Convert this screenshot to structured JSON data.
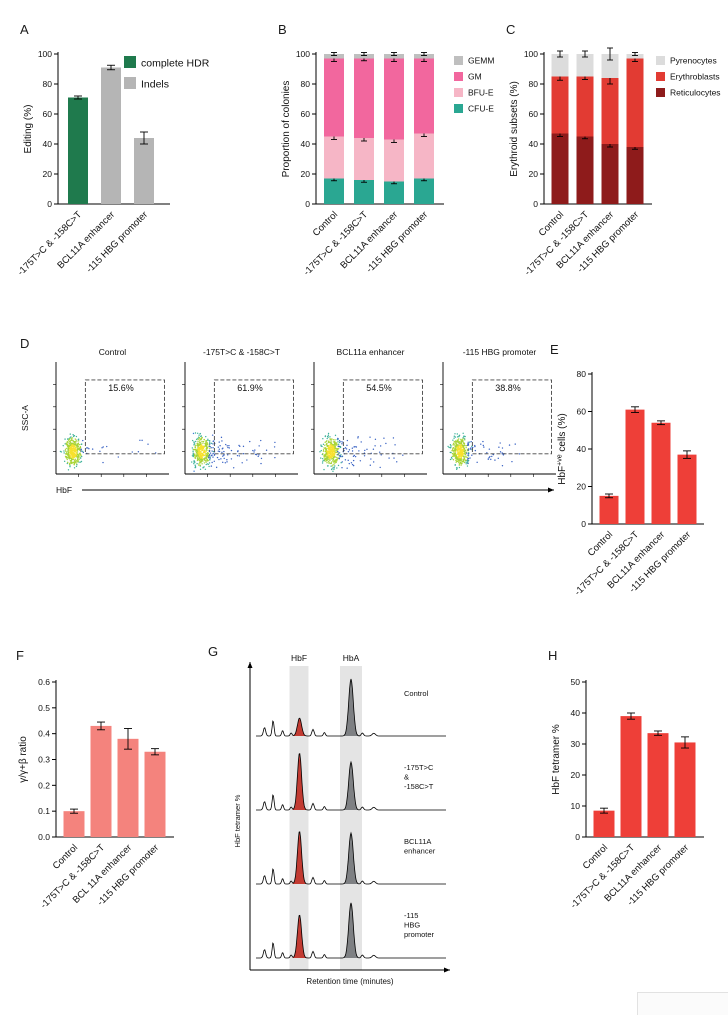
{
  "figure": {
    "background": "#ffffff",
    "panel_labels": {
      "A": "A",
      "B": "B",
      "C": "C",
      "D": "D",
      "E": "E",
      "F": "F",
      "G": "G",
      "H": "H"
    }
  },
  "chart_data": [
    {
      "panel": "A",
      "type": "bar",
      "ylabel": "Editing (%)",
      "ylim": [
        0,
        100
      ],
      "yticks": [
        0,
        20,
        40,
        60,
        80,
        100
      ],
      "ytick_labels": [
        "0",
        "20",
        "40",
        "60",
        "80",
        "100"
      ],
      "categories": [
        "-175T>C & -158C>T",
        "BCL11A enhancer",
        "-115 HBG promoter"
      ],
      "values": [
        71,
        91,
        44
      ],
      "errors": [
        1,
        1.5,
        4
      ],
      "bar_colors": [
        "#1f7a4d",
        "#b5b5b5",
        "#b5b5b5"
      ],
      "legend": [
        {
          "label": "complete HDR",
          "color": "#1f7a4d"
        },
        {
          "label": "Indels",
          "color": "#b5b5b5"
        }
      ]
    },
    {
      "panel": "B",
      "type": "stacked-bar",
      "ylabel": "Proportion of colonies",
      "ylim": [
        0,
        100
      ],
      "yticks": [
        0,
        20,
        40,
        60,
        80,
        100
      ],
      "ytick_labels": [
        "0",
        "20",
        "40",
        "60",
        "80",
        "100"
      ],
      "categories": [
        "Control",
        "-175T>C & -158C>T",
        "BCL11A enhancer",
        "-115 HBG promoter"
      ],
      "series": [
        {
          "name": "CFU-E",
          "color": "#2aa792",
          "values": [
            17,
            16,
            15,
            17
          ],
          "errors": [
            1.5,
            1.5,
            1.5,
            1.5
          ]
        },
        {
          "name": "BFU-E",
          "color": "#f6b6c6",
          "values": [
            28,
            28,
            28,
            30
          ],
          "errors": [
            2,
            2,
            2,
            2
          ]
        },
        {
          "name": "GM",
          "color": "#f2679e",
          "values": [
            52,
            53,
            54,
            50
          ],
          "errors": [
            2,
            1.5,
            2,
            2
          ]
        },
        {
          "name": "GEMM",
          "color": "#bfbfbf",
          "values": [
            3,
            3,
            3,
            3
          ],
          "errors": [
            1,
            1,
            1,
            1
          ]
        }
      ],
      "legend": [
        {
          "label": "GEMM",
          "color": "#bfbfbf"
        },
        {
          "label": "GM",
          "color": "#f2679e"
        },
        {
          "label": "BFU-E",
          "color": "#f6b6c6"
        },
        {
          "label": "CFU-E",
          "color": "#2aa792"
        }
      ]
    },
    {
      "panel": "C",
      "type": "stacked-bar",
      "ylabel": "Erythroid subsets (%)",
      "ylim": [
        0,
        100
      ],
      "yticks": [
        0,
        20,
        40,
        60,
        80,
        100
      ],
      "ytick_labels": [
        "0",
        "20",
        "40",
        "60",
        "80",
        "100"
      ],
      "categories": [
        "Control",
        "-175T>C & -158C>T",
        "BCL11A enhancer",
        "-115 HBG promoter"
      ],
      "series": [
        {
          "name": "Reticulocytes",
          "color": "#8e1b1b",
          "values": [
            47,
            45,
            40,
            38
          ],
          "errors": [
            2,
            1.5,
            2,
            1.5
          ]
        },
        {
          "name": "Erythroblasts",
          "color": "#e23b33",
          "values": [
            38,
            40,
            44,
            59
          ],
          "errors": [
            2.5,
            2,
            4,
            2
          ]
        },
        {
          "name": "Pyrenocytes",
          "color": "#dcdcdc",
          "values": [
            15,
            15,
            16,
            3
          ],
          "errors": [
            2,
            2,
            4,
            1
          ]
        }
      ],
      "legend": [
        {
          "label": "Pyrenocytes",
          "color": "#dcdcdc"
        },
        {
          "label": "Erythroblasts",
          "color": "#e23b33"
        },
        {
          "label": "Reticulocytes",
          "color": "#8e1b1b"
        }
      ]
    },
    {
      "panel": "D",
      "type": "flow-cytometry",
      "xlabel": "HbF",
      "ylabel": "SSC-A",
      "plots": [
        {
          "title": "Control",
          "gate_label": "15.6%",
          "gate_value": 15.6
        },
        {
          "title": "-175T>C & -158C>T",
          "gate_label": "61.9%",
          "gate_value": 61.9
        },
        {
          "title": "BCL11a enhancer",
          "gate_label": "54.5%",
          "gate_value": 54.5
        },
        {
          "title": "-115 HBG promoter",
          "gate_label": "38.8%",
          "gate_value": 38.8
        }
      ]
    },
    {
      "panel": "E",
      "type": "bar",
      "ylabel": "HbF+ve cells (%)",
      "ylabel_parts": [
        {
          "t": "HbF"
        },
        {
          "t": "+ve",
          "sup": true
        },
        {
          "t": " cells (%)"
        }
      ],
      "ylim": [
        0,
        80
      ],
      "yticks": [
        0,
        20,
        40,
        60,
        80
      ],
      "ytick_labels": [
        "0",
        "20",
        "40",
        "60",
        "80"
      ],
      "categories": [
        "Control",
        "-175T>C & -158C>T",
        "BCL11A enhancer",
        "-115 HBG promoter"
      ],
      "values": [
        15,
        61,
        54,
        37
      ],
      "errors": [
        1,
        1.5,
        1,
        2
      ],
      "bar_colors": [
        "#ee3f38",
        "#ee3f38",
        "#ee3f38",
        "#ee3f38"
      ]
    },
    {
      "panel": "F",
      "type": "bar",
      "ylabel": "γ/γ+β ratio",
      "ylim": [
        0,
        0.6
      ],
      "yticks": [
        0,
        0.1,
        0.2,
        0.3,
        0.4,
        0.5,
        0.6
      ],
      "ytick_labels": [
        "0.0",
        "0.1",
        "0.2",
        "0.3",
        "0.4",
        "0.5",
        "0.6"
      ],
      "categories": [
        "Control",
        "-175T>C & -158C>T",
        "BCL 11A enhancer",
        "-115 HBG promoter"
      ],
      "values": [
        0.1,
        0.43,
        0.38,
        0.33
      ],
      "errors": [
        0.008,
        0.015,
        0.04,
        0.012
      ],
      "bar_colors": [
        "#f4837d",
        "#f4837d",
        "#f4837d",
        "#f4837d"
      ]
    },
    {
      "panel": "G",
      "type": "chromatogram",
      "xlabel": "Retention time (minutes)",
      "ylabel": "HbF tetramer %",
      "bands": [
        {
          "label": "HbF",
          "peak_color": "#c23b32"
        },
        {
          "label": "HbA",
          "peak_color": "#7e8083"
        }
      ],
      "traces": [
        {
          "label_lines": [
            "Control"
          ],
          "hbf": 0.3,
          "hba": 0.95
        },
        {
          "label_lines": [
            "-175T>C",
            "&",
            "-158C>T"
          ],
          "hbf": 0.95,
          "hba": 0.8
        },
        {
          "label_lines": [
            "BCL11A",
            "enhancer"
          ],
          "hbf": 0.88,
          "hba": 0.85
        },
        {
          "label_lines": [
            "-115",
            "HBG",
            "promoter"
          ],
          "hbf": 0.72,
          "hba": 0.92
        }
      ]
    },
    {
      "panel": "H",
      "type": "bar",
      "ylabel": "HbF tetramer %",
      "ylim": [
        0,
        50
      ],
      "yticks": [
        0,
        10,
        20,
        30,
        40,
        50
      ],
      "ytick_labels": [
        "0",
        "10",
        "20",
        "30",
        "40",
        "50"
      ],
      "categories": [
        "Control",
        "-175T>C & -158C>T",
        "BCL11A enhancer",
        "-115 HBG promoter"
      ],
      "values": [
        8.5,
        39,
        33.5,
        30.5
      ],
      "errors": [
        0.8,
        1,
        0.7,
        1.8
      ],
      "bar_colors": [
        "#ee3f38",
        "#ee3f38",
        "#ee3f38",
        "#ee3f38"
      ]
    }
  ]
}
